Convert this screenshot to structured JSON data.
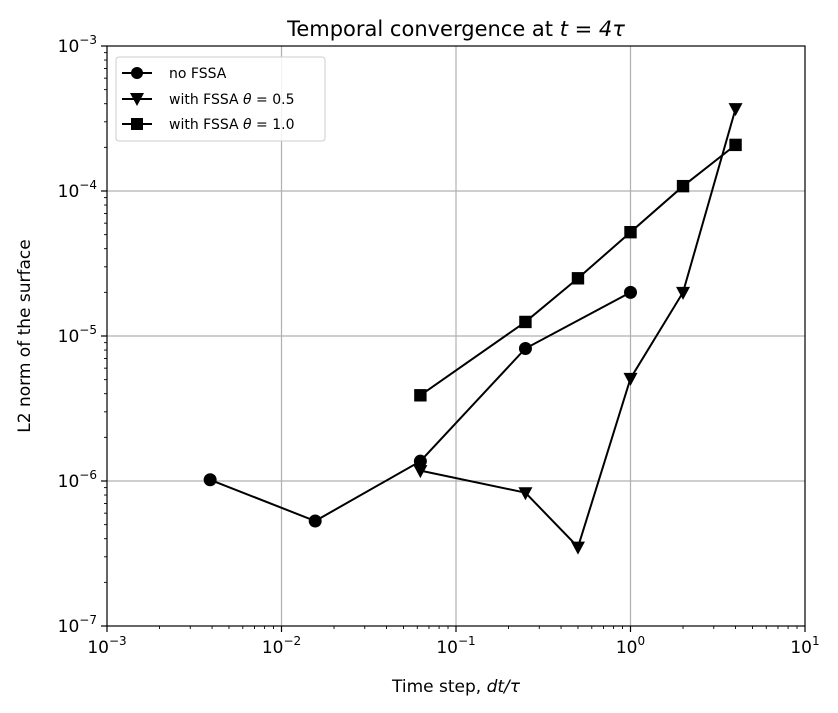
{
  "chart_data": {
    "type": "line",
    "title": {
      "pre": "Temporal convergence at ",
      "math": "t = 4τ"
    },
    "xlabel": {
      "pre": "Time step, ",
      "math": "dt/τ"
    },
    "ylabel": "L2 norm of the surface",
    "xscale": "log",
    "yscale": "log",
    "xlim": [
      0.001,
      10
    ],
    "ylim": [
      1e-07,
      0.001
    ],
    "grid": true,
    "legend_position": "top-left",
    "xticks": [
      {
        "value": 0.001,
        "base": "10",
        "exp": "−3"
      },
      {
        "value": 0.01,
        "base": "10",
        "exp": "−2"
      },
      {
        "value": 0.1,
        "base": "10",
        "exp": "−1"
      },
      {
        "value": 1,
        "base": "10",
        "exp": "0"
      },
      {
        "value": 10,
        "base": "10",
        "exp": "1"
      }
    ],
    "yticks": [
      {
        "value": 1e-07,
        "base": "10",
        "exp": "−7"
      },
      {
        "value": 1e-06,
        "base": "10",
        "exp": "−6"
      },
      {
        "value": 1e-05,
        "base": "10",
        "exp": "−5"
      },
      {
        "value": 0.0001,
        "base": "10",
        "exp": "−4"
      },
      {
        "value": 0.001,
        "base": "10",
        "exp": "−3"
      }
    ],
    "series": [
      {
        "name": "no FSSA",
        "marker": "circle",
        "color": "#000000",
        "x": [
          0.0039,
          0.0156,
          0.0625,
          0.25,
          1.0
        ],
        "y": [
          1.02e-06,
          5.3e-07,
          1.37e-06,
          8.2e-06,
          2e-05
        ]
      },
      {
        "name": "with FSSA θ = 0.5",
        "legend_pre": "with FSSA ",
        "legend_math": "θ",
        "legend_post": " = 0.5",
        "marker": "triangle-down",
        "color": "#000000",
        "x": [
          0.0625,
          0.25,
          0.5,
          1.0,
          2.0,
          4.0
        ],
        "y": [
          1.18e-06,
          8.3e-07,
          3.5e-07,
          5.1e-06,
          2e-05,
          0.00037
        ]
      },
      {
        "name": "with FSSA θ = 1.0",
        "legend_pre": "with FSSA ",
        "legend_math": "θ",
        "legend_post": " = 1.0",
        "marker": "square",
        "color": "#000000",
        "x": [
          0.0625,
          0.25,
          0.5,
          1.0,
          2.0,
          4.0
        ],
        "y": [
          3.9e-06,
          1.25e-05,
          2.5e-05,
          5.2e-05,
          0.000108,
          0.000208
        ]
      }
    ]
  }
}
